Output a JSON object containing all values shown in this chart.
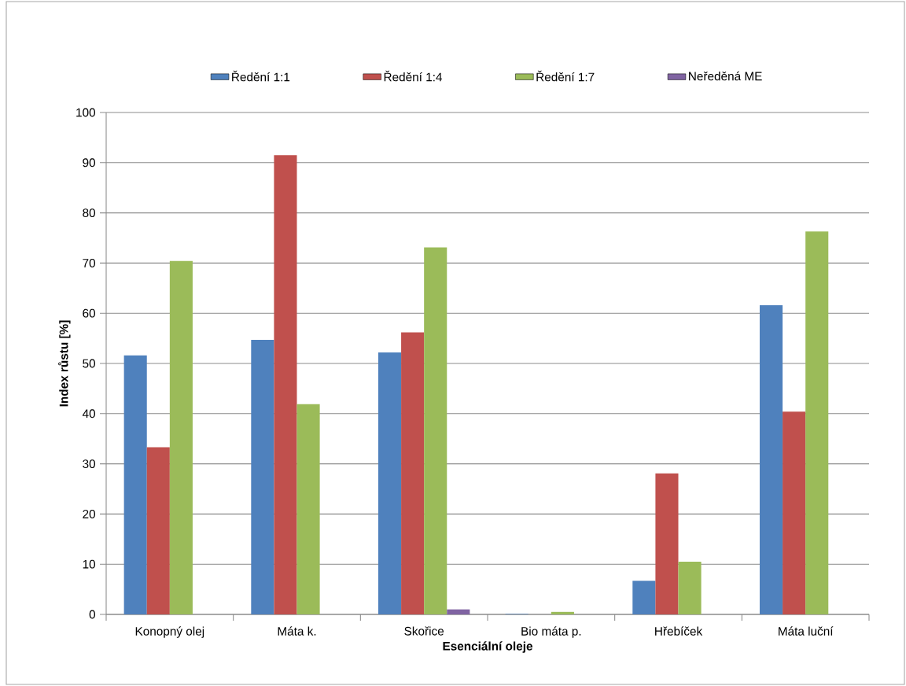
{
  "chart_data": {
    "type": "bar",
    "xlabel": "Esenciální oleje",
    "ylabel": "Index růstu [%]",
    "categories": [
      "Konopný olej",
      "Máta k.",
      "Skořice",
      "Bio máta p.",
      "Hřebíček",
      "Máta luční"
    ],
    "series": [
      {
        "name": "Ředění 1:1",
        "color": "#4f81bd",
        "values": [
          51.6,
          54.7,
          52.2,
          0.1,
          6.7,
          61.6
        ]
      },
      {
        "name": "Ředění 1:4",
        "color": "#c0504d",
        "values": [
          33.3,
          91.5,
          56.2,
          0,
          28.1,
          40.4
        ]
      },
      {
        "name": "Ředění 1:7",
        "color": "#9bbb59",
        "values": [
          70.4,
          41.9,
          73.1,
          0.5,
          10.5,
          76.3
        ]
      },
      {
        "name": "Neředěná ME",
        "color": "#8064a2",
        "values": [
          0,
          0,
          1.0,
          0,
          0,
          0
        ]
      }
    ],
    "ylim": [
      0,
      100
    ],
    "yticks": [
      0,
      10,
      20,
      30,
      40,
      50,
      60,
      70,
      80,
      90,
      100
    ],
    "grid": "y",
    "legend": "top"
  }
}
